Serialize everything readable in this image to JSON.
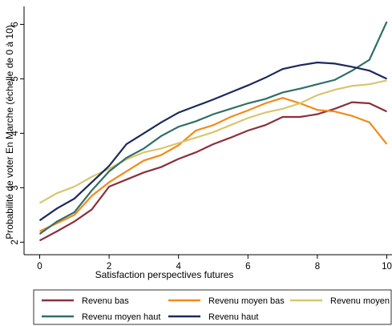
{
  "chart_data": {
    "type": "line",
    "x_label": "Satisfaction perspectives futures",
    "y_label": "Probabilité de voter En Marche (échelle de 0 à 10)",
    "x": [
      0,
      0.5,
      1,
      1.5,
      2,
      2.5,
      3,
      3.5,
      4,
      4.5,
      5,
      5.5,
      6,
      6.5,
      7,
      7.5,
      8,
      8.5,
      9,
      9.5,
      10
    ],
    "series": [
      {
        "name": "Revenu bas",
        "color": "#8b2f3e",
        "values": [
          2.03,
          2.2,
          2.38,
          2.6,
          3.02,
          3.15,
          3.28,
          3.38,
          3.53,
          3.65,
          3.8,
          3.92,
          4.05,
          4.15,
          4.3,
          4.3,
          4.35,
          4.45,
          4.57,
          4.55,
          4.4
        ]
      },
      {
        "name": "Revenu moyen bas",
        "color": "#f28a1a",
        "values": [
          2.2,
          2.35,
          2.5,
          2.85,
          3.1,
          3.3,
          3.5,
          3.6,
          3.78,
          4.05,
          4.15,
          4.3,
          4.42,
          4.55,
          4.65,
          4.55,
          4.43,
          4.4,
          4.32,
          4.2,
          3.8
        ]
      },
      {
        "name": "Revenu moyen",
        "color": "#d8c66e",
        "values": [
          2.72,
          2.9,
          3.02,
          3.2,
          3.35,
          3.52,
          3.65,
          3.72,
          3.82,
          3.92,
          4.02,
          4.15,
          4.28,
          4.38,
          4.45,
          4.55,
          4.7,
          4.8,
          4.87,
          4.9,
          4.97
        ]
      },
      {
        "name": "Revenu moyen haut",
        "color": "#2f6f66",
        "values": [
          2.15,
          2.38,
          2.55,
          2.95,
          3.3,
          3.55,
          3.72,
          3.95,
          4.12,
          4.22,
          4.35,
          4.45,
          4.55,
          4.63,
          4.75,
          4.82,
          4.9,
          4.98,
          5.15,
          5.35,
          6.05
        ]
      },
      {
        "name": "Revenu haut",
        "color": "#1b2a5c",
        "values": [
          2.4,
          2.62,
          2.8,
          3.1,
          3.4,
          3.8,
          4.0,
          4.2,
          4.38,
          4.5,
          4.62,
          4.75,
          4.88,
          5.02,
          5.18,
          5.25,
          5.3,
          5.28,
          5.22,
          5.15,
          5.0
        ]
      }
    ],
    "xlim": [
      -0.45,
      10.15
    ],
    "ylim": [
      1.77,
      6.33
    ],
    "xticks": [
      0,
      2,
      4,
      6,
      8,
      10
    ],
    "yticks": [
      2,
      3,
      4,
      5,
      6
    ]
  }
}
